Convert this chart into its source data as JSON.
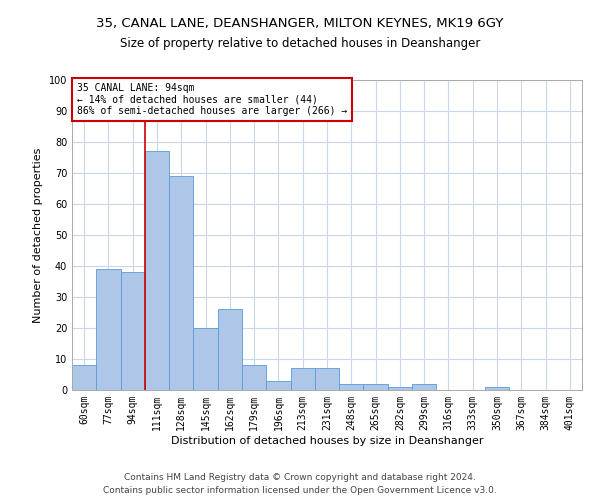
{
  "title1": "35, CANAL LANE, DEANSHANGER, MILTON KEYNES, MK19 6GY",
  "title2": "Size of property relative to detached houses in Deanshanger",
  "xlabel": "Distribution of detached houses by size in Deanshanger",
  "ylabel": "Number of detached properties",
  "categories": [
    "60sqm",
    "77sqm",
    "94sqm",
    "111sqm",
    "128sqm",
    "145sqm",
    "162sqm",
    "179sqm",
    "196sqm",
    "213sqm",
    "231sqm",
    "248sqm",
    "265sqm",
    "282sqm",
    "299sqm",
    "316sqm",
    "333sqm",
    "350sqm",
    "367sqm",
    "384sqm",
    "401sqm"
  ],
  "values": [
    8,
    39,
    38,
    77,
    69,
    20,
    26,
    8,
    3,
    7,
    7,
    2,
    2,
    1,
    2,
    0,
    0,
    1,
    0,
    0,
    0
  ],
  "bar_color": "#aec6e8",
  "bar_edge_color": "#5b9bd5",
  "ref_line_index": 2,
  "ref_line_label": "35 CANAL LANE: 94sqm",
  "annotation_line1": "← 14% of detached houses are smaller (44)",
  "annotation_line2": "86% of semi-detached houses are larger (266) →",
  "annotation_box_color": "#ffffff",
  "annotation_box_edge": "#cc0000",
  "ref_line_color": "#cc0000",
  "ylim": [
    0,
    100
  ],
  "yticks": [
    0,
    10,
    20,
    30,
    40,
    50,
    60,
    70,
    80,
    90,
    100
  ],
  "footer1": "Contains HM Land Registry data © Crown copyright and database right 2024.",
  "footer2": "Contains public sector information licensed under the Open Government Licence v3.0.",
  "bg_color": "#ffffff",
  "grid_color": "#c8d8e8",
  "title1_fontsize": 9.5,
  "title2_fontsize": 8.5,
  "xlabel_fontsize": 8,
  "ylabel_fontsize": 8,
  "tick_fontsize": 7,
  "annot_fontsize": 7,
  "footer_fontsize": 6.5
}
